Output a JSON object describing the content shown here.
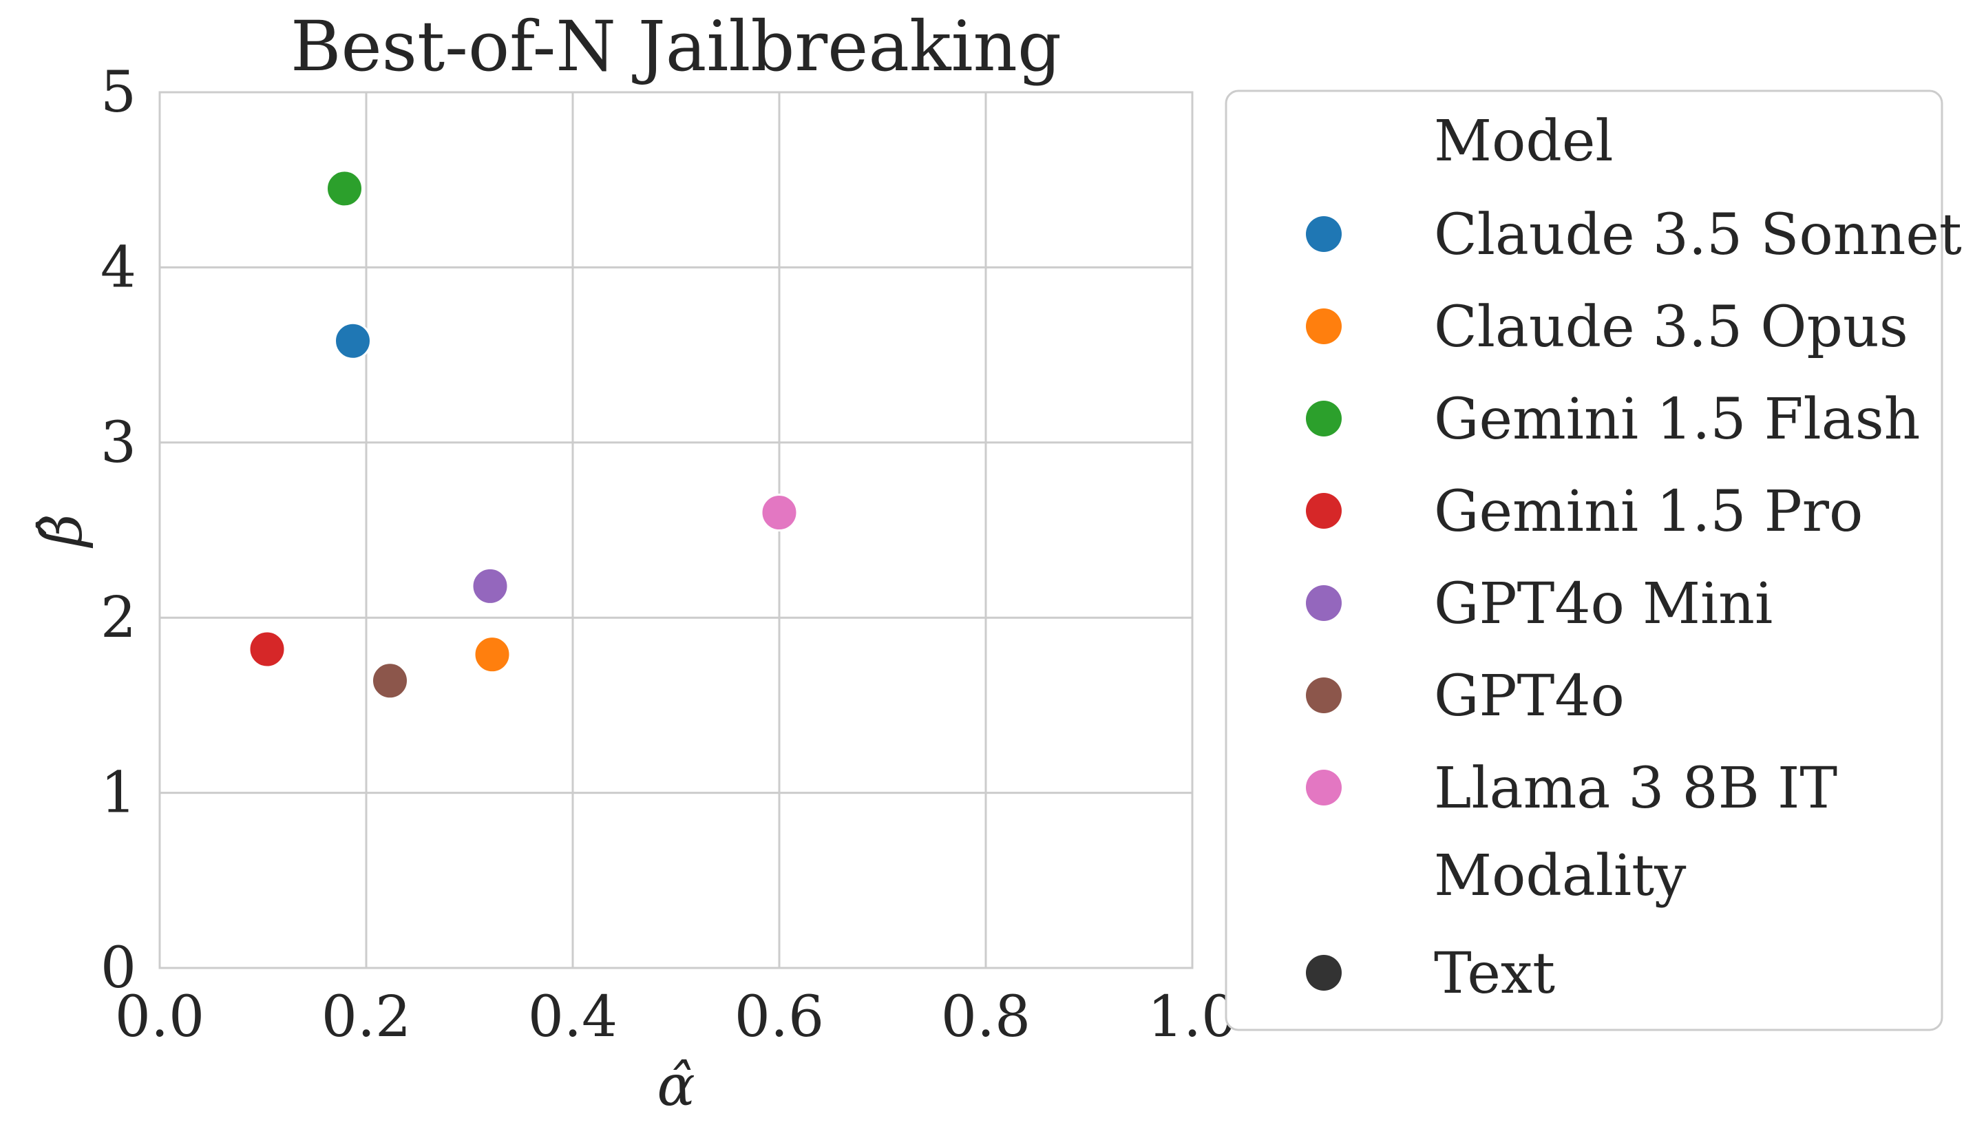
{
  "chart_data": {
    "type": "scatter",
    "title": "Best-of-N Jailbreaking",
    "xlabel": "α̂",
    "ylabel": "β̂",
    "xlim": [
      0.0,
      1.0
    ],
    "ylim": [
      0,
      5
    ],
    "xticks": [
      "0.0",
      "0.2",
      "0.4",
      "0.6",
      "0.8",
      "1.0"
    ],
    "yticks": [
      "0",
      "1",
      "2",
      "3",
      "4",
      "5"
    ],
    "grid": true,
    "legend_placement": "outside-right",
    "series": [
      {
        "name": "Claude 3.5 Sonnet",
        "color": "#1f77b4",
        "x": 0.187,
        "y": 3.58
      },
      {
        "name": "Claude 3.5 Opus",
        "color": "#ff7f0e",
        "x": 0.322,
        "y": 1.79
      },
      {
        "name": "Gemini 1.5 Flash",
        "color": "#2ca02c",
        "x": 0.179,
        "y": 4.45
      },
      {
        "name": "Gemini 1.5 Pro",
        "color": "#d62728",
        "x": 0.104,
        "y": 1.82
      },
      {
        "name": "GPT4o Mini",
        "color": "#9467bd",
        "x": 0.32,
        "y": 2.18
      },
      {
        "name": "GPT4o",
        "color": "#8c564b",
        "x": 0.223,
        "y": 1.64
      },
      {
        "name": "Llama 3 8B IT",
        "color": "#e377c2",
        "x": 0.6,
        "y": 2.6
      }
    ],
    "legend": {
      "hue_title": "Model",
      "style_title": "Modality",
      "style_entries": [
        {
          "name": "Text",
          "color": "#333333"
        }
      ]
    }
  }
}
